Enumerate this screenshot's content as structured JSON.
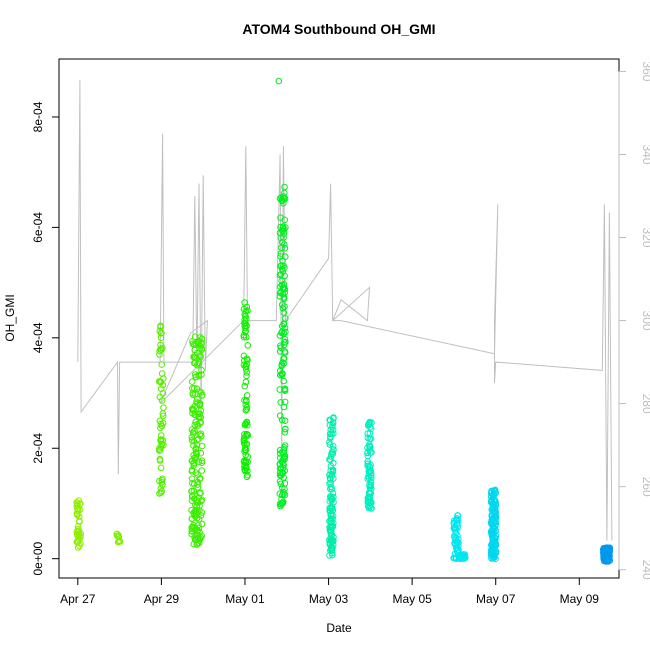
{
  "chart_data": {
    "type": "scatter",
    "title": "ATOM4 Southbound OH_GMI",
    "xlabel": "Date",
    "ylabel": "OH_GMI",
    "x_tick_labels": [
      "Apr 27",
      "Apr 29",
      "May 01",
      "May 03",
      "May 05",
      "May 07",
      "May 09"
    ],
    "x_tick_values": [
      0,
      2,
      4,
      6,
      8,
      10,
      12
    ],
    "x_zero_date": "Apr 27",
    "xlim": [
      -0.45,
      12.95
    ],
    "y_tick_labels": [
      "0e+00",
      "2e-04",
      "4e-04",
      "6e-04",
      "8e-04"
    ],
    "y_tick_values": [
      0,
      0.0002,
      0.0004,
      0.0006,
      0.0008
    ],
    "ylim": [
      -3.5e-05,
      0.000905
    ],
    "y2_tick_labels": [
      "240",
      "260",
      "280",
      "300",
      "320",
      "340",
      "360"
    ],
    "y2_tick_values": [
      240,
      260,
      280,
      300,
      320,
      340,
      360
    ],
    "y2lim": [
      238,
      363
    ],
    "grid": false,
    "legend": "none",
    "colors": {
      "axis": "#000000",
      "right_axis": "#bdbdbd",
      "altitude_line": "#c0c0c0"
    },
    "clusters": [
      {
        "x_center": 0.02,
        "x_spread": 0.05,
        "y_min": 1.8e-05,
        "y_max": 0.000108,
        "count": 40,
        "color": "#90ee00"
      },
      {
        "x_center": 0.97,
        "x_spread": 0.04,
        "y_min": 3e-05,
        "y_max": 4.5e-05,
        "count": 10,
        "color": "#7fee00"
      },
      {
        "x_center": 2.0,
        "x_spread": 0.05,
        "y_min": 0.000115,
        "y_max": 0.00043,
        "count": 55,
        "color": "#55ee00"
      },
      {
        "x_center": 2.85,
        "x_spread": 0.13,
        "y_min": 2.5e-05,
        "y_max": 0.00041,
        "count": 190,
        "color": "#3cee00"
      },
      {
        "x_center": 4.02,
        "x_spread": 0.05,
        "y_min": 0.000145,
        "y_max": 0.000465,
        "count": 80,
        "color": "#10ee00"
      },
      {
        "x_center": 4.9,
        "x_spread": 0.07,
        "y_min": 9.5e-05,
        "y_max": 0.000675,
        "count": 150,
        "color": "#00ee20"
      },
      {
        "x_center": 6.07,
        "x_spread": 0.05,
        "y_min": 5e-06,
        "y_max": 0.00026,
        "count": 110,
        "color": "#00eeaa"
      },
      {
        "x_center": 6.98,
        "x_spread": 0.05,
        "y_min": 9e-05,
        "y_max": 0.00025,
        "count": 70,
        "color": "#00eec0"
      },
      {
        "x_center": 9.05,
        "x_spread": 0.06,
        "y_min": 0.0,
        "y_max": 8e-05,
        "count": 50,
        "color": "#00e6ee"
      },
      {
        "x_center": 9.2,
        "x_spread": 0.08,
        "y_min": 0.0,
        "y_max": 8e-06,
        "count": 25,
        "color": "#00e6ee"
      },
      {
        "x_center": 9.95,
        "x_spread": 0.06,
        "y_min": 0.0,
        "y_max": 0.000125,
        "count": 130,
        "color": "#00d6ee"
      },
      {
        "x_center": 12.65,
        "x_spread": 0.08,
        "y_min": -5e-06,
        "y_max": 2e-05,
        "count": 110,
        "color": "#0099ee"
      }
    ],
    "single_points": [
      {
        "x": 4.81,
        "y": 0.000865,
        "color": "#00ee20"
      }
    ],
    "altitude_path": [
      [
        0.0,
        290
      ],
      [
        0.05,
        358
      ],
      [
        0.08,
        278
      ],
      [
        0.95,
        290
      ],
      [
        0.97,
        263
      ],
      [
        1.0,
        290
      ],
      [
        1.97,
        290
      ],
      [
        2.03,
        345
      ],
      [
        2.06,
        290
      ],
      [
        2.75,
        290
      ],
      [
        2.8,
        330
      ],
      [
        2.85,
        290
      ],
      [
        2.9,
        333
      ],
      [
        2.95,
        278
      ],
      [
        3.0,
        335
      ],
      [
        3.05,
        288
      ],
      [
        3.1,
        300
      ],
      [
        2.7,
        297
      ],
      [
        1.97,
        280
      ],
      [
        3.97,
        300
      ],
      [
        4.02,
        342
      ],
      [
        4.06,
        300
      ],
      [
        4.75,
        300
      ],
      [
        4.8,
        322
      ],
      [
        4.84,
        340
      ],
      [
        4.88,
        268
      ],
      [
        4.92,
        342
      ],
      [
        4.97,
        300
      ],
      [
        6.0,
        315
      ],
      [
        6.05,
        333
      ],
      [
        6.1,
        300
      ],
      [
        6.3,
        305
      ],
      [
        6.93,
        300
      ],
      [
        6.98,
        308
      ],
      [
        6.1,
        300
      ],
      [
        6.3,
        300
      ],
      [
        9.97,
        292
      ],
      [
        10.05,
        328
      ],
      [
        9.97,
        300
      ],
      [
        9.97,
        285
      ],
      [
        10.0,
        290
      ],
      [
        12.55,
        288
      ],
      [
        12.6,
        328
      ],
      [
        12.66,
        247
      ],
      [
        12.72,
        326
      ],
      [
        12.78,
        247
      ]
    ]
  }
}
